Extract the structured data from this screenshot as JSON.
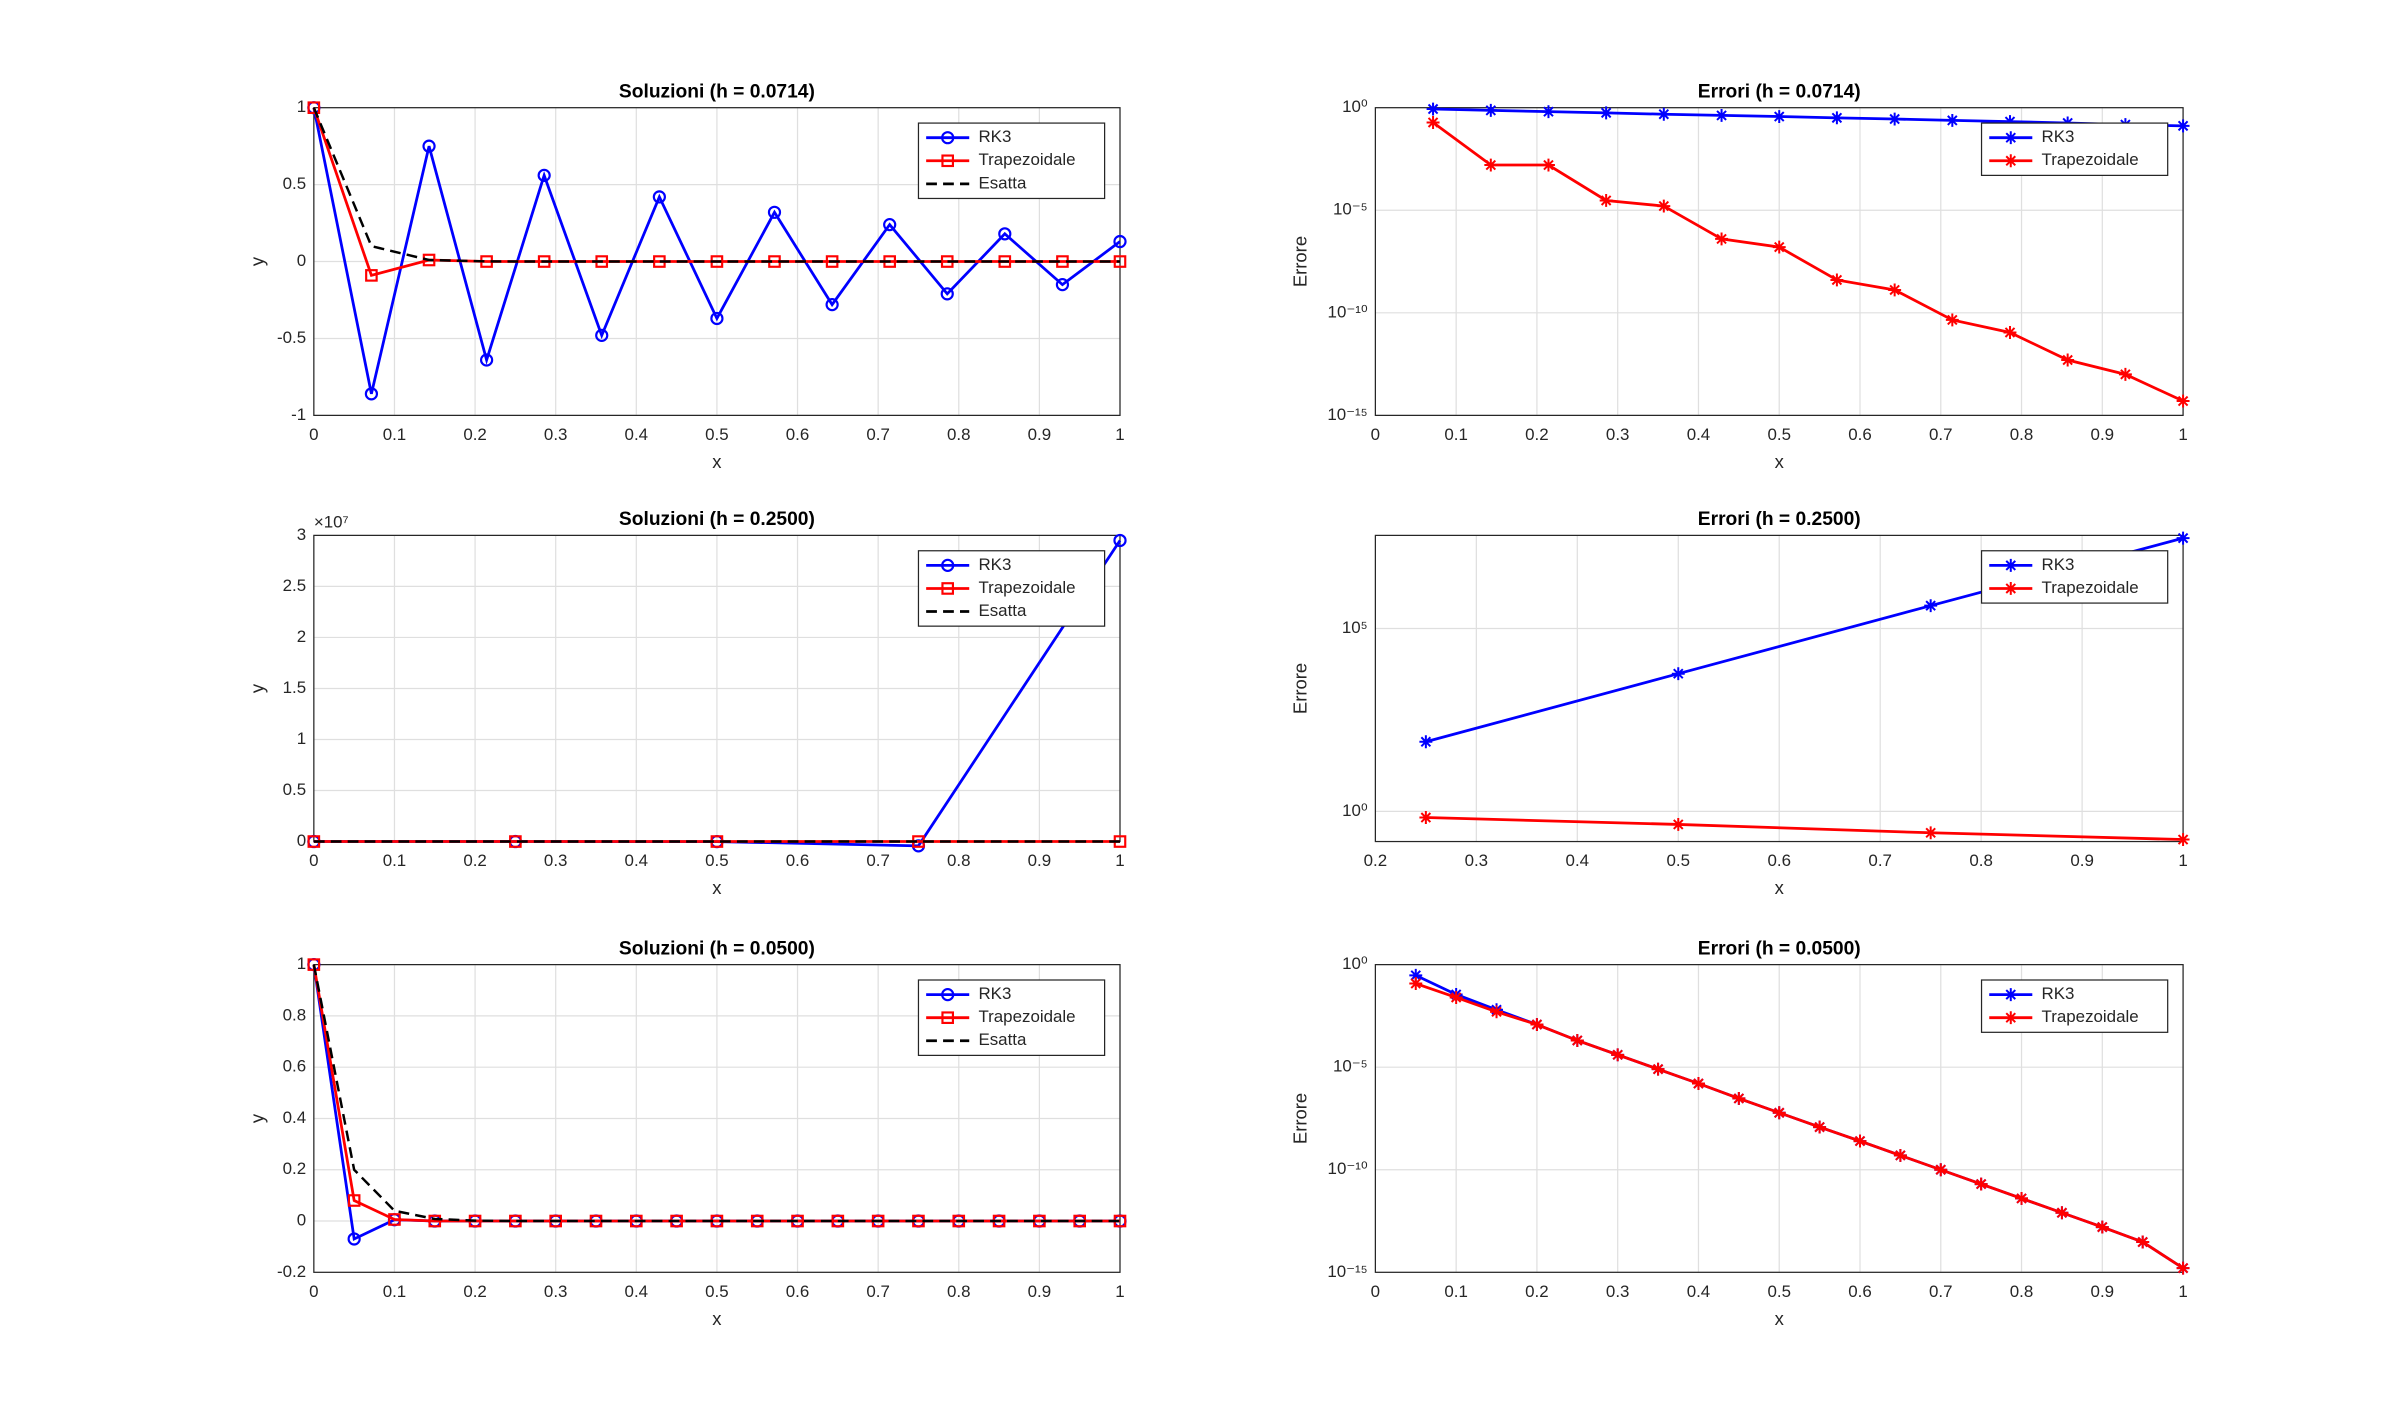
{
  "chart_data": [
    {
      "type": "line",
      "title": "Soluzioni (h = 0.0714)",
      "xlabel": "x",
      "ylabel": "y",
      "grid": true,
      "yscale": "linear",
      "legend": "northeast",
      "x": [
        0,
        0.0714,
        0.1429,
        0.2143,
        0.2857,
        0.3571,
        0.4286,
        0.5,
        0.5714,
        0.6429,
        0.7143,
        0.7857,
        0.8571,
        0.9286,
        1
      ],
      "xlim": [
        0,
        1
      ],
      "xticks": [
        0,
        0.1,
        0.2,
        0.3,
        0.4,
        0.5,
        0.6,
        0.7,
        0.8,
        0.9,
        1
      ],
      "ylim": [
        -1,
        1
      ],
      "yticks": [
        -1,
        -0.5,
        0,
        0.5,
        1
      ],
      "series": [
        {
          "name": "RK3",
          "color": "#0000ff",
          "marker": "circle",
          "linestyle": "solid",
          "values": [
            1,
            -0.86,
            0.75,
            -0.64,
            0.56,
            -0.48,
            0.42,
            -0.37,
            0.32,
            -0.28,
            0.24,
            -0.21,
            0.18,
            -0.15,
            0.13
          ]
        },
        {
          "name": "Trapezoidale",
          "color": "#ff0000",
          "marker": "square",
          "linestyle": "solid",
          "values": [
            1,
            -0.09,
            0.01,
            0,
            0,
            0,
            0,
            0,
            0,
            0,
            0,
            0,
            0,
            0,
            0
          ]
        },
        {
          "name": "Esatta",
          "color": "#000000",
          "marker": "none",
          "linestyle": "dashed",
          "values": [
            1,
            0.1,
            0.01,
            0.001,
            0,
            0,
            0,
            0,
            0,
            0,
            0,
            0,
            0,
            0,
            0
          ]
        }
      ]
    },
    {
      "type": "line",
      "title": "Errori (h = 0.0714)",
      "xlabel": "x",
      "ylabel": "Errore",
      "grid": true,
      "yscale": "log",
      "legend": "northeast",
      "x": [
        0.0714,
        0.1429,
        0.2143,
        0.2857,
        0.3571,
        0.4286,
        0.5,
        0.5714,
        0.6429,
        0.7143,
        0.7857,
        0.8571,
        0.9286,
        1
      ],
      "xlim": [
        0,
        1
      ],
      "xticks": [
        0,
        0.1,
        0.2,
        0.3,
        0.4,
        0.5,
        0.6,
        0.7,
        0.8,
        0.9,
        1
      ],
      "ylim": [
        1e-15,
        1
      ],
      "yticks": [
        {
          "value": 1e-15,
          "label": "10⁻¹⁵"
        },
        {
          "value": 1e-10,
          "label": "10⁻¹⁰"
        },
        {
          "value": 1e-05,
          "label": "10⁻⁵"
        },
        {
          "value": 1,
          "label": "10⁰"
        }
      ],
      "series": [
        {
          "name": "RK3",
          "color": "#0000ff",
          "marker": "asterisk",
          "linestyle": "solid",
          "values": [
            0.86,
            0.74,
            0.64,
            0.56,
            0.48,
            0.42,
            0.37,
            0.32,
            0.28,
            0.24,
            0.21,
            0.18,
            0.15,
            0.13
          ]
        },
        {
          "name": "Trapezoidale",
          "color": "#ff0000",
          "marker": "asterisk",
          "linestyle": "solid",
          "values": [
            0.19,
            0.0016,
            0.0016,
            3e-05,
            1.6e-05,
            4e-07,
            1.6e-07,
            4e-09,
            1.3e-09,
            4.5e-11,
            1.1e-11,
            5e-13,
            1e-13,
            5e-15
          ]
        }
      ]
    },
    {
      "type": "line",
      "title": "Soluzioni (h = 0.2500)",
      "xlabel": "x",
      "ylabel": "y",
      "grid": true,
      "yscale": "linear",
      "legend": "northeast",
      "y_exponent": "×10⁷",
      "x": [
        0,
        0.25,
        0.5,
        0.75,
        1
      ],
      "xlim": [
        0,
        1
      ],
      "xticks": [
        0,
        0.1,
        0.2,
        0.3,
        0.4,
        0.5,
        0.6,
        0.7,
        0.8,
        0.9,
        1
      ],
      "ylim": [
        0,
        30000000
      ],
      "yticks": [
        0,
        {
          "value": 5000000,
          "label": "0.5"
        },
        {
          "value": 10000000,
          "label": "1"
        },
        {
          "value": 15000000,
          "label": "1.5"
        },
        {
          "value": 20000000,
          "label": "2"
        },
        {
          "value": 25000000,
          "label": "2.5"
        },
        {
          "value": 30000000,
          "label": "3"
        }
      ],
      "series": [
        {
          "name": "RK3",
          "color": "#0000ff",
          "marker": "circle",
          "linestyle": "solid",
          "values": [
            1,
            80,
            -5800,
            -420000,
            29500000
          ]
        },
        {
          "name": "Trapezoidale",
          "color": "#ff0000",
          "marker": "square",
          "linestyle": "solid",
          "values": [
            1,
            -0.68,
            0.44,
            -0.26,
            0.17
          ]
        },
        {
          "name": "Esatta",
          "color": "#000000",
          "marker": "none",
          "linestyle": "dashed",
          "values": [
            1,
            0,
            0,
            0,
            0
          ]
        }
      ]
    },
    {
      "type": "line",
      "title": "Errori (h = 0.2500)",
      "xlabel": "x",
      "ylabel": "Errore",
      "grid": true,
      "yscale": "log",
      "legend": "northeast",
      "x": [
        0.25,
        0.5,
        0.75,
        1
      ],
      "xlim": [
        0.2,
        1
      ],
      "xticks": [
        0.2,
        0.3,
        0.4,
        0.5,
        0.6,
        0.7,
        0.8,
        0.9,
        1
      ],
      "ylim": [
        0.15,
        35000000
      ],
      "yticks": [
        {
          "value": 1,
          "label": "10⁰"
        },
        {
          "value": 100000,
          "label": "10⁵"
        }
      ],
      "series": [
        {
          "name": "RK3",
          "color": "#0000ff",
          "marker": "asterisk",
          "linestyle": "solid",
          "values": [
            80,
            5800,
            420000,
            29500000
          ]
        },
        {
          "name": "Trapezoidale",
          "color": "#ff0000",
          "marker": "asterisk",
          "linestyle": "solid",
          "values": [
            0.68,
            0.44,
            0.26,
            0.17
          ]
        }
      ]
    },
    {
      "type": "line",
      "title": "Soluzioni (h = 0.0500)",
      "xlabel": "x",
      "ylabel": "y",
      "grid": true,
      "yscale": "linear",
      "legend": "northeast",
      "x": [
        0,
        0.05,
        0.1,
        0.15,
        0.2,
        0.25,
        0.3,
        0.35,
        0.4,
        0.45,
        0.5,
        0.55,
        0.6,
        0.65,
        0.7,
        0.75,
        0.8,
        0.85,
        0.9,
        0.95,
        1
      ],
      "xlim": [
        0,
        1
      ],
      "xticks": [
        0,
        0.1,
        0.2,
        0.3,
        0.4,
        0.5,
        0.6,
        0.7,
        0.8,
        0.9,
        1
      ],
      "ylim": [
        -0.2,
        1
      ],
      "yticks": [
        -0.2,
        0,
        0.2,
        0.4,
        0.6,
        0.8,
        1
      ],
      "series": [
        {
          "name": "RK3",
          "color": "#0000ff",
          "marker": "circle",
          "linestyle": "solid",
          "values": [
            1,
            -0.07,
            0.005,
            0,
            0,
            0,
            0,
            0,
            0,
            0,
            0,
            0,
            0,
            0,
            0,
            0,
            0,
            0,
            0,
            0,
            0
          ]
        },
        {
          "name": "Trapezoidale",
          "color": "#ff0000",
          "marker": "square",
          "linestyle": "solid",
          "values": [
            1,
            0.08,
            0.006,
            0,
            0,
            0,
            0,
            0,
            0,
            0,
            0,
            0,
            0,
            0,
            0,
            0,
            0,
            0,
            0,
            0,
            0
          ]
        },
        {
          "name": "Esatta",
          "color": "#000000",
          "marker": "none",
          "linestyle": "dashed",
          "values": [
            1,
            0.2,
            0.04,
            0.008,
            0.0016,
            0,
            0,
            0,
            0,
            0,
            0,
            0,
            0,
            0,
            0,
            0,
            0,
            0,
            0,
            0,
            0
          ]
        }
      ]
    },
    {
      "type": "line",
      "title": "Errori (h = 0.0500)",
      "xlabel": "x",
      "ylabel": "Errore",
      "grid": true,
      "yscale": "log",
      "legend": "northeast",
      "x": [
        0.05,
        0.1,
        0.15,
        0.2,
        0.25,
        0.3,
        0.35,
        0.4,
        0.45,
        0.5,
        0.55,
        0.6,
        0.65,
        0.7,
        0.75,
        0.8,
        0.85,
        0.9,
        0.95,
        1
      ],
      "xlim": [
        0,
        1
      ],
      "xticks": [
        0,
        0.1,
        0.2,
        0.3,
        0.4,
        0.5,
        0.6,
        0.7,
        0.8,
        0.9,
        1
      ],
      "ylim": [
        1e-15,
        1
      ],
      "yticks": [
        {
          "value": 1e-15,
          "label": "10⁻¹⁵"
        },
        {
          "value": 1e-10,
          "label": "10⁻¹⁰"
        },
        {
          "value": 1e-05,
          "label": "10⁻⁵"
        },
        {
          "value": 1,
          "label": "10⁰"
        }
      ],
      "series": [
        {
          "name": "RK3",
          "color": "#0000ff",
          "marker": "asterisk",
          "linestyle": "solid",
          "values": [
            0.3,
            0.035,
            0.0063,
            0.0012,
            0.0002,
            4e-05,
            8e-06,
            1.6e-06,
            3e-07,
            6e-08,
            1.2e-08,
            2.5e-09,
            5e-10,
            1e-10,
            2e-11,
            4e-12,
            8e-13,
            1.6e-13,
            3e-14,
            1.6e-15
          ]
        },
        {
          "name": "Trapezoidale",
          "color": "#ff0000",
          "marker": "asterisk",
          "linestyle": "solid",
          "values": [
            0.12,
            0.025,
            0.005,
            0.0012,
            0.0002,
            4e-05,
            8e-06,
            1.6e-06,
            3e-07,
            6e-08,
            1.2e-08,
            2.5e-09,
            5e-10,
            1e-10,
            2e-11,
            4e-12,
            8e-13,
            1.6e-13,
            3e-14,
            1.6e-15
          ]
        }
      ]
    }
  ]
}
